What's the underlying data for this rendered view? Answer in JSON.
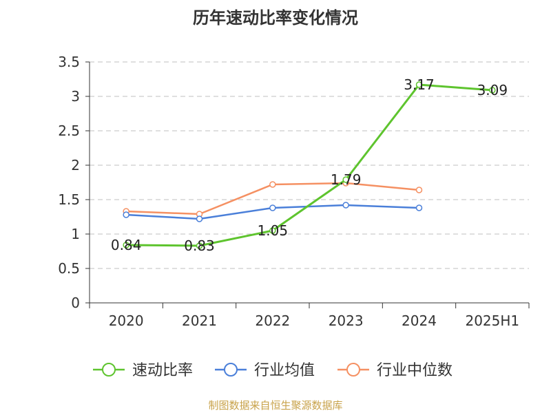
{
  "chart_data": {
    "type": "line",
    "title": "历年速动比率变化情况",
    "categories": [
      "2020",
      "2021",
      "2022",
      "2023",
      "2024",
      "2025H1"
    ],
    "ylim": [
      0,
      3.5
    ],
    "yticks": [
      "0",
      "0.5",
      "1",
      "1.5",
      "2",
      "2.5",
      "3",
      "3.5"
    ],
    "grid": true,
    "legend_position": "bottom",
    "series": [
      {
        "name": "速动比率",
        "color": "#5ec42e",
        "values": [
          0.84,
          0.83,
          1.05,
          1.79,
          3.17,
          3.09
        ],
        "labels": [
          "0.84",
          "0.83",
          "1.05",
          "1.79",
          "3.17",
          "3.09"
        ]
      },
      {
        "name": "行业均值",
        "color": "#4a7fd9",
        "values": [
          1.28,
          1.22,
          1.38,
          1.42,
          1.38,
          null
        ]
      },
      {
        "name": "行业中位数",
        "color": "#f59062",
        "values": [
          1.33,
          1.29,
          1.72,
          1.74,
          1.64,
          null
        ]
      }
    ]
  },
  "source": "制图数据来自恒生聚源数据库"
}
